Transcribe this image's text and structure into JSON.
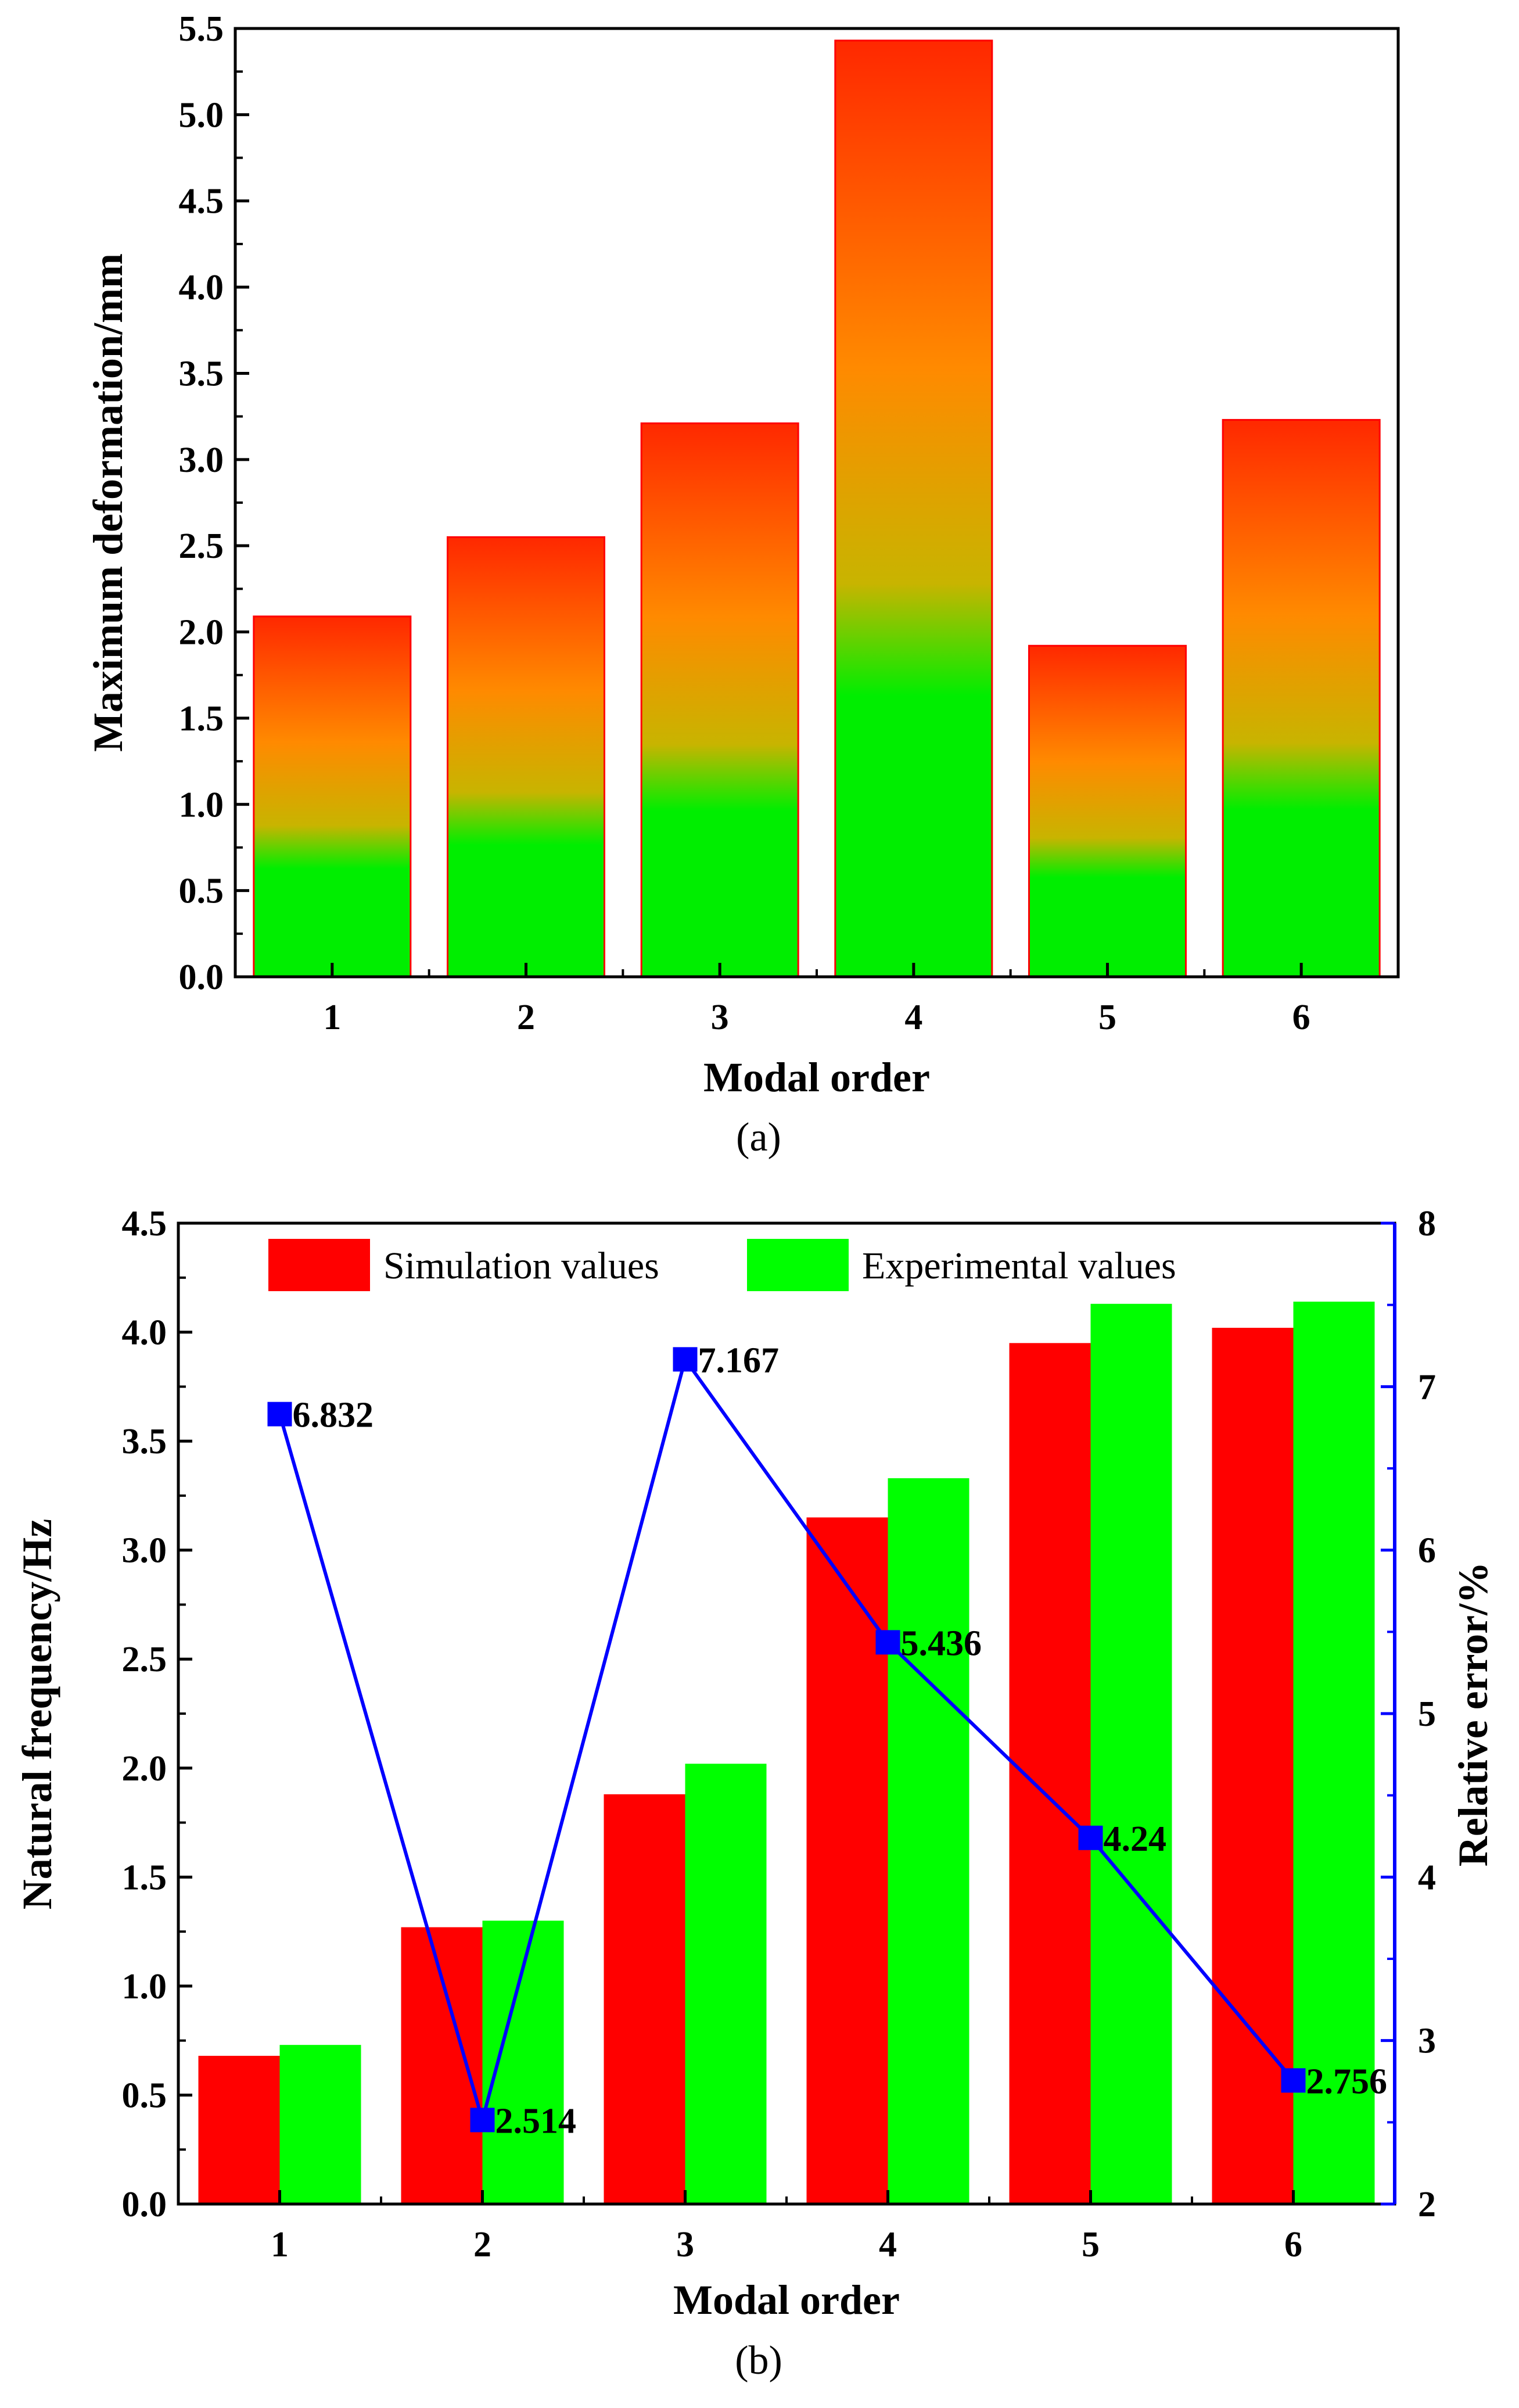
{
  "panel_a_caption": "(a)",
  "panel_b_caption": "(b)",
  "colors": {
    "bar_gradient_top": "#ff2800",
    "bar_gradient_mid": "#ff8a00",
    "bar_gradient_low": "#00ee00",
    "bar_edge": "#ff0000",
    "simulation": "#ff0000",
    "experimental": "#00ff00",
    "error_line": "#0000ff"
  },
  "chart_data": [
    {
      "type": "bar",
      "categories": [
        "1",
        "2",
        "3",
        "4",
        "5",
        "6"
      ],
      "values": [
        2.09,
        2.55,
        3.21,
        5.43,
        1.92,
        3.23
      ],
      "xlabel": "Modal order",
      "ylabel": "Maximum deformation/mm",
      "ylim": [
        0,
        5.5
      ],
      "yticks": [
        "0.0",
        "0.5",
        "1.0",
        "1.5",
        "2.0",
        "2.5",
        "3.0",
        "3.5",
        "4.0",
        "4.5",
        "5.0",
        "5.5"
      ],
      "grid": false
    },
    {
      "type": "bar",
      "categories": [
        "1",
        "2",
        "3",
        "4",
        "5",
        "6"
      ],
      "xlabel": "Modal order",
      "ylabel": "Natural frequency/Hz",
      "ylabel_right": "Relative error/%",
      "ylim": [
        0,
        4.5
      ],
      "ylim_right": [
        2,
        8
      ],
      "yticks": [
        "0.0",
        "0.5",
        "1.0",
        "1.5",
        "2.0",
        "2.5",
        "3.0",
        "3.5",
        "4.0",
        "4.5"
      ],
      "yticks_right": [
        "2",
        "3",
        "4",
        "5",
        "6",
        "7",
        "8"
      ],
      "legend_position": "top",
      "grid": false,
      "series": [
        {
          "name": "Simulation values",
          "values": [
            0.68,
            1.27,
            1.88,
            3.15,
            3.95,
            4.02
          ]
        },
        {
          "name": "Experimental values",
          "values": [
            0.73,
            1.3,
            2.02,
            3.33,
            4.13,
            4.14
          ]
        }
      ],
      "line_series": {
        "axis": "right",
        "values": [
          6.832,
          2.514,
          7.167,
          5.436,
          4.24,
          2.756
        ],
        "labels": [
          "6.832",
          "2.514",
          "7.167",
          "5.436",
          "4.24",
          "2.756"
        ]
      }
    }
  ]
}
